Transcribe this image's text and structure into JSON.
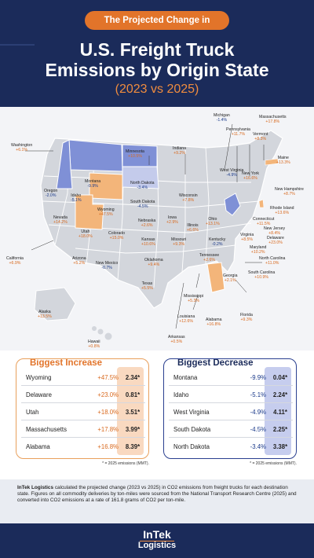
{
  "header": {
    "pill": "The Projected Change in",
    "title_line1": "U.S. Freight Truck",
    "title_line2": "Emissions by Origin State",
    "subtitle": "(2023 vs 2025)"
  },
  "colors": {
    "navy": "#1b2b5a",
    "orange": "#e2742a",
    "increase_fill": "#f3b57a",
    "decrease_fill": "#7f90d6",
    "neutral_fill": "#d3d6dc"
  },
  "map_labels": [
    {
      "id": "washington",
      "name": "Washington",
      "value": "+6.1%",
      "sign": "pos"
    },
    {
      "id": "oregon",
      "name": "Oregon",
      "value": "-2.0%",
      "sign": "neg"
    },
    {
      "id": "california",
      "name": "California",
      "value": "+6.9%",
      "sign": "pos"
    },
    {
      "id": "nevada",
      "name": "Nevada",
      "value": "+14.2%",
      "sign": "pos"
    },
    {
      "id": "idaho",
      "name": "Idaho",
      "value": "-5.1%",
      "sign": "neg"
    },
    {
      "id": "montana",
      "name": "Montana",
      "value": "-9.9%",
      "sign": "neg"
    },
    {
      "id": "wyoming",
      "name": "Wyoming",
      "value": "+47.5%",
      "sign": "pos"
    },
    {
      "id": "utah",
      "name": "Utah",
      "value": "+18.0%",
      "sign": "pos"
    },
    {
      "id": "colorado",
      "name": "Colorado",
      "value": "+15.0%",
      "sign": "pos"
    },
    {
      "id": "arizona",
      "name": "Arizona",
      "value": "+5.2%",
      "sign": "pos"
    },
    {
      "id": "newmexico",
      "name": "New Mexico",
      "value": "-0.7%",
      "sign": "neg"
    },
    {
      "id": "alaska",
      "name": "Alaska",
      "value": "+13.5%",
      "sign": "pos"
    },
    {
      "id": "hawaii",
      "name": "Hawaii",
      "value": "+0.8%",
      "sign": "pos"
    },
    {
      "id": "minnesota",
      "name": "Minnesota",
      "value": "+10.5%",
      "sign": "pos"
    },
    {
      "id": "northdakota",
      "name": "North Dakota",
      "value": "-3.4%",
      "sign": "neg"
    },
    {
      "id": "southdakota",
      "name": "South Dakota",
      "value": "-4.5%",
      "sign": "neg"
    },
    {
      "id": "nebraska",
      "name": "Nebraska",
      "value": "+2.6%",
      "sign": "pos"
    },
    {
      "id": "kansas",
      "name": "Kansas",
      "value": "+10.6%",
      "sign": "pos"
    },
    {
      "id": "oklahoma",
      "name": "Oklahoma",
      "value": "+9.4%",
      "sign": "pos"
    },
    {
      "id": "texas",
      "name": "Texas",
      "value": "+5.5%",
      "sign": "pos"
    },
    {
      "id": "iowa",
      "name": "Iowa",
      "value": "+2.9%",
      "sign": "pos"
    },
    {
      "id": "missouri",
      "name": "Missouri",
      "value": "+9.3%",
      "sign": "pos"
    },
    {
      "id": "arkansas",
      "name": "Arkansas",
      "value": "+0.5%",
      "sign": "pos"
    },
    {
      "id": "louisiana",
      "name": "Louisiana",
      "value": "+12.6%",
      "sign": "pos"
    },
    {
      "id": "wisconsin",
      "name": "Wisconsin",
      "value": "+7.8%",
      "sign": "pos"
    },
    {
      "id": "illinois",
      "name": "Illinois",
      "value": "+6.6%",
      "sign": "pos"
    },
    {
      "id": "indiana",
      "name": "Indiana",
      "value": "+9.2%",
      "sign": "pos"
    },
    {
      "id": "michigan",
      "name": "Michigan",
      "value": "-1.4%",
      "sign": "neg"
    },
    {
      "id": "ohio",
      "name": "Ohio",
      "value": "+13.1%",
      "sign": "pos"
    },
    {
      "id": "kentucky",
      "name": "Kentucky",
      "value": "-0.2%",
      "sign": "neg"
    },
    {
      "id": "tennessee",
      "name": "Tennessee",
      "value": "+2.6%",
      "sign": "pos"
    },
    {
      "id": "mississippi",
      "name": "Mississippi",
      "value": "+5.3%",
      "sign": "pos"
    },
    {
      "id": "alabama",
      "name": "Alabama",
      "value": "+16.8%",
      "sign": "pos"
    },
    {
      "id": "georgia",
      "name": "Georgia",
      "value": "+2.1%",
      "sign": "pos"
    },
    {
      "id": "florida",
      "name": "Florida",
      "value": "+9.3%",
      "sign": "pos"
    },
    {
      "id": "southcarolina",
      "name": "South Carolina",
      "value": "+10.9%",
      "sign": "pos"
    },
    {
      "id": "northcarolina",
      "name": "North Carolina",
      "value": "+11.0%",
      "sign": "pos"
    },
    {
      "id": "virginia",
      "name": "Virginia",
      "value": "+8.5%",
      "sign": "pos"
    },
    {
      "id": "westvirginia",
      "name": "West Virginia",
      "value": "-4.9%",
      "sign": "neg"
    },
    {
      "id": "pennsylvania",
      "name": "Pennsylvania",
      "value": "+11.7%",
      "sign": "pos"
    },
    {
      "id": "newyork",
      "name": "New York",
      "value": "+16.6%",
      "sign": "pos"
    },
    {
      "id": "maryland",
      "name": "Maryland",
      "value": "+10.2%",
      "sign": "pos"
    },
    {
      "id": "delaware",
      "name": "Delaware",
      "value": "+23.0%",
      "sign": "pos"
    },
    {
      "id": "newjersey",
      "name": "New Jersey",
      "value": "+8.4%",
      "sign": "pos"
    },
    {
      "id": "connecticut",
      "name": "Connecticut",
      "value": "+11.5%",
      "sign": "pos"
    },
    {
      "id": "rhodeisland",
      "name": "Rhode Island",
      "value": "+13.6%",
      "sign": "pos"
    },
    {
      "id": "massachusetts",
      "name": "Massachusetts",
      "value": "+17.8%",
      "sign": "pos"
    },
    {
      "id": "vermont",
      "name": "Vermont",
      "value": "+8.3%",
      "sign": "pos"
    },
    {
      "id": "newhampshire",
      "name": "New Hampshire",
      "value": "+8.7%",
      "sign": "pos"
    },
    {
      "id": "maine",
      "name": "Maine",
      "value": "+13.3%",
      "sign": "pos"
    }
  ],
  "increase": {
    "heading": "Biggest Increase",
    "rows": [
      {
        "state": "Wyoming",
        "pct": "+47.5%",
        "abs": "2.34*"
      },
      {
        "state": "Delaware",
        "pct": "+23.0%",
        "abs": "0.81*"
      },
      {
        "state": "Utah",
        "pct": "+18.0%",
        "abs": "3.51*"
      },
      {
        "state": "Massachusetts",
        "pct": "+17.8%",
        "abs": "3.99*"
      },
      {
        "state": "Alabama",
        "pct": "+16.8%",
        "abs": "8.39*"
      }
    ],
    "note": "* = 2025 emissions (MMT)."
  },
  "decrease": {
    "heading": "Biggest Decrease",
    "rows": [
      {
        "state": "Montana",
        "pct": "-9.9%",
        "abs": "0.04*"
      },
      {
        "state": "Idaho",
        "pct": "-5.1%",
        "abs": "2.24*"
      },
      {
        "state": "West Virginia",
        "pct": "-4.9%",
        "abs": "4.11*"
      },
      {
        "state": "South Dakota",
        "pct": "-4.5%",
        "abs": "2.25*"
      },
      {
        "state": "North Dakota",
        "pct": "-3.4%",
        "abs": "3.38*"
      }
    ],
    "note": "* = 2025 emissions (MMT)."
  },
  "footnote": {
    "brand": "InTek Logistics",
    "text": " calculated the projected change (2023 vs 2025) in CO2 emissions from freight trucks for each destination state. Figures on all commodity deliveries by ton-miles were sourced from the National Transport Research Centre (2025) and converted into CO2 emissions at a rate of 161.8 grams of CO2 per ton-mile."
  },
  "footer": {
    "logo_top": "InTek",
    "logo_bottom": "Logistics"
  }
}
